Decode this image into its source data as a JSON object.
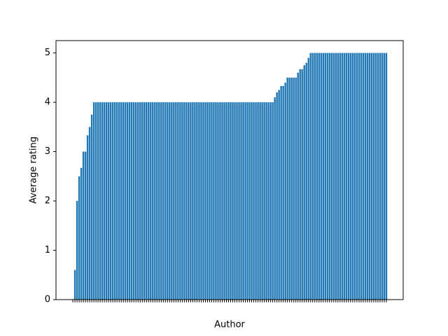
{
  "chart_data": {
    "type": "bar",
    "x_label": "Author",
    "y_label": "Average rating",
    "color": "#1f77b4",
    "categories": [
      null,
      null,
      null,
      null,
      null,
      null,
      null,
      null,
      null,
      null,
      null,
      null,
      null,
      null,
      null,
      null,
      null,
      null,
      null,
      null,
      null,
      null,
      null,
      null,
      null,
      null,
      null,
      null,
      null,
      null,
      null,
      null,
      null,
      null,
      null,
      null,
      null,
      null,
      null,
      null,
      null,
      null,
      null,
      null,
      null,
      null,
      null,
      null,
      null,
      null,
      null,
      null,
      null,
      null,
      null,
      null,
      null,
      null,
      null,
      null,
      null,
      null,
      null,
      null,
      null,
      null,
      null,
      null,
      null,
      null,
      null,
      null,
      null,
      null,
      null,
      null,
      null,
      null,
      null,
      null,
      null,
      null,
      null,
      null,
      null,
      null,
      null,
      null,
      null,
      null,
      null,
      null,
      null,
      null,
      null,
      null,
      null,
      null,
      null,
      null,
      null,
      null,
      null,
      null,
      null,
      null,
      null,
      null,
      null,
      null,
      null,
      null,
      null,
      null,
      null,
      null,
      null,
      null,
      null,
      null,
      null,
      null,
      null,
      null,
      null,
      null,
      null,
      null,
      null,
      null,
      null,
      null,
      null,
      null,
      null,
      null,
      null,
      null,
      null,
      null,
      null,
      null,
      null,
      null,
      null,
      null,
      null,
      null,
      null,
      null
    ],
    "values": [
      0,
      0.6,
      2.0,
      2.5,
      2.67,
      3.0,
      3.0,
      3.33,
      3.5,
      3.75,
      4,
      4,
      4,
      4,
      4,
      4,
      4,
      4,
      4,
      4,
      4,
      4,
      4,
      4,
      4,
      4,
      4,
      4,
      4,
      4,
      4,
      4,
      4,
      4,
      4,
      4,
      4,
      4,
      4,
      4,
      4,
      4,
      4,
      4,
      4,
      4,
      4,
      4,
      4,
      4,
      4,
      4,
      4,
      4,
      4,
      4,
      4,
      4,
      4,
      4,
      4,
      4,
      4,
      4,
      4,
      4,
      4,
      4,
      4,
      4,
      4,
      4,
      4,
      4,
      4,
      4,
      4,
      4,
      4,
      4,
      4,
      4,
      4,
      4,
      4,
      4,
      4,
      4,
      4,
      4,
      4,
      4,
      4,
      4,
      4,
      4,
      4.1,
      4.2,
      4.25,
      4.33,
      4.33,
      4.4,
      4.5,
      4.5,
      4.5,
      4.5,
      4.5,
      4.6,
      4.67,
      4.67,
      4.75,
      4.8,
      4.9,
      5,
      5,
      5,
      5,
      5,
      5,
      5,
      5,
      5,
      5,
      5,
      5,
      5,
      5,
      5,
      5,
      5,
      5,
      5,
      5,
      5,
      5,
      5,
      5,
      5,
      5,
      5,
      5,
      5,
      5,
      5,
      5,
      5,
      5,
      5,
      5,
      5
    ],
    "ylim": [
      0,
      5.25
    ],
    "yticks": [
      0,
      1,
      2,
      3,
      4,
      5
    ],
    "grid": false
  }
}
